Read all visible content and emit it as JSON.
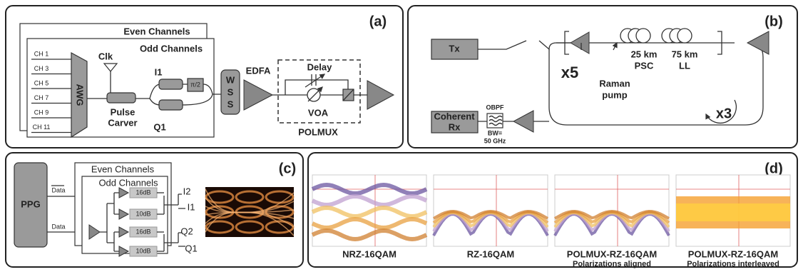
{
  "panel_a": {
    "label": "(a)",
    "even_channels": "Even Channels",
    "odd_channels": "Odd Channels",
    "channels": [
      "CH 1",
      "CH 3",
      "CH 5",
      "CH 7",
      "CH 9",
      "CH 11"
    ],
    "awg": "AWG",
    "clk": "Clk",
    "pulse_carver": [
      "Pulse",
      "Carver"
    ],
    "i1": "I1",
    "q1": "Q1",
    "phase": "π/2",
    "wss": [
      "W",
      "S",
      "S"
    ],
    "edfa": "EDFA",
    "delay": "Delay",
    "voa": "VOA",
    "polmux": "POLMUX"
  },
  "panel_b": {
    "label": "(b)",
    "tx": "Tx",
    "x5": "x5",
    "raman": [
      "Raman",
      "pump"
    ],
    "span1": [
      "25 km",
      "PSC"
    ],
    "span2": [
      "75 km",
      "LL"
    ],
    "x3": "x3",
    "obpf": "OBPF",
    "bw": [
      "BW=",
      "50 GHz"
    ],
    "rx": [
      "Coherent",
      "Rx"
    ]
  },
  "panel_c": {
    "label": "(c)",
    "ppg": "PPG",
    "data_bar": "Data",
    "data": "Data",
    "even_channels": "Even Channels",
    "odd_channels": "Odd Channels",
    "attenuators": [
      "16dB",
      "10dB",
      "16dB",
      "10dB"
    ],
    "outputs": [
      "I2",
      "I1",
      "Q2",
      "Q1"
    ]
  },
  "panel_d": {
    "label": "(d)",
    "plots": [
      {
        "title": "NRZ-16QAM"
      },
      {
        "title": "RZ-16QAM"
      },
      {
        "title": "POLMUX-RZ-16QAM",
        "subtitle": "Polarizations aligned"
      },
      {
        "title": "POLMUX-RZ-16QAM",
        "subtitle": "Polarizations interleaved"
      }
    ]
  }
}
